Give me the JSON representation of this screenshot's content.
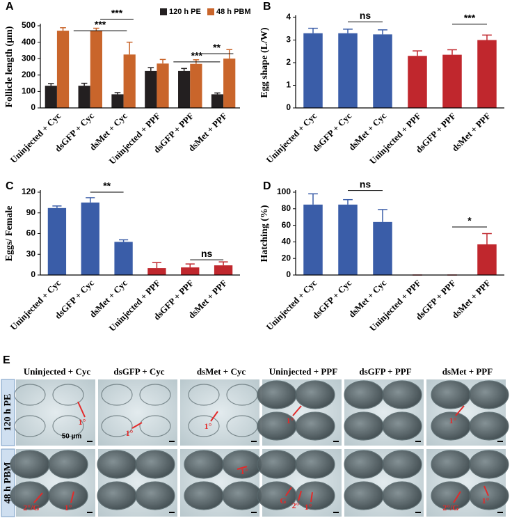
{
  "chart_data": [
    {
      "type": "bar",
      "panel_label": "A",
      "y_label": "Follicle length (µm)",
      "categories": [
        "Uninjected + Cyc",
        "dsGFP + Cyc",
        "dsMet + Cyc",
        "Uninjected + PPF",
        "dsGFP + PPF",
        "dsMet + PPF"
      ],
      "series": [
        {
          "name": "120 h PE",
          "color": "#231f20",
          "values": [
            135,
            135,
            83,
            225,
            225,
            83
          ],
          "errors": [
            13,
            15,
            10,
            20,
            15,
            8
          ]
        },
        {
          "name": "48 h PBM",
          "color": "#c9652b",
          "values": [
            470,
            470,
            325,
            270,
            268,
            300
          ],
          "errors": [
            18,
            15,
            75,
            25,
            25,
            55
          ]
        }
      ],
      "ylim": [
        0,
        500
      ],
      "yticks": [
        0,
        100,
        200,
        300,
        400,
        500
      ],
      "annotations": [
        "***",
        "***",
        "**",
        "***"
      ]
    },
    {
      "type": "bar",
      "panel_label": "B",
      "y_label": "Egg shape (L/W)",
      "categories": [
        "Uninjected + Cyc",
        "dsGFP + Cyc",
        "dsMet + Cyc",
        "Uninjected + PPF",
        "dsGFP + PPF",
        "dsMet + PPF"
      ],
      "series": [
        {
          "colors": [
            "#3a5da8",
            "#3a5da8",
            "#3a5da8",
            "#c0272d",
            "#c0272d",
            "#c0272d"
          ],
          "values": [
            3.3,
            3.3,
            3.25,
            2.3,
            2.35,
            3.0
          ],
          "errors": [
            0.22,
            0.18,
            0.2,
            0.22,
            0.22,
            0.22
          ]
        }
      ],
      "ylim": [
        0,
        4
      ],
      "yticks": [
        0,
        1,
        2,
        3,
        4
      ],
      "annotations": [
        "ns",
        "***"
      ]
    },
    {
      "type": "bar",
      "panel_label": "C",
      "y_label": "Eggs/ Female",
      "categories": [
        "Uninjected + Cyc",
        "dsGFP + Cyc",
        "dsMet + Cyc",
        "Uninjected + PPF",
        "dsGFP + PPF",
        "dsMet + PPF"
      ],
      "series": [
        {
          "colors": [
            "#3a5da8",
            "#3a5da8",
            "#3a5da8",
            "#c0272d",
            "#c0272d",
            "#c0272d"
          ],
          "values": [
            97,
            105,
            48,
            10,
            11,
            14
          ],
          "errors": [
            3,
            7,
            3,
            8,
            5,
            5
          ]
        }
      ],
      "ylim": [
        0,
        120
      ],
      "yticks": [
        0,
        30,
        60,
        90,
        120
      ],
      "annotations": [
        "**",
        "ns"
      ]
    },
    {
      "type": "bar",
      "panel_label": "D",
      "y_label": "Hatching (%)",
      "categories": [
        "Uninjected + Cyc",
        "dsGFP + Cyc",
        "dsMet + Cyc",
        "Uninjected + PPF",
        "dsGFP + PPF",
        "dsMet + PPF"
      ],
      "series": [
        {
          "colors": [
            "#3a5da8",
            "#3a5da8",
            "#3a5da8",
            "#c0272d",
            "#c0272d",
            "#c0272d"
          ],
          "values": [
            85,
            85,
            64,
            0,
            0,
            37
          ],
          "errors": [
            13,
            6,
            15,
            0,
            0,
            13
          ]
        }
      ],
      "ylim": [
        0,
        100
      ],
      "yticks": [
        0,
        20,
        40,
        60,
        80,
        100
      ],
      "annotations": [
        "ns",
        "*"
      ]
    }
  ],
  "panel_e": {
    "panel_label": "E",
    "columns": [
      "Uninjected + Cyc",
      "dsGFP + Cyc",
      "dsMet + Cyc",
      "Uninjected + PPF",
      "dsGFP + PPF",
      "dsMet + PPF"
    ],
    "rows": [
      "120 h PE",
      "48 h PBM"
    ],
    "scale_bar": "50 µm",
    "cells": [
      [
        [
          "1°"
        ],
        [
          "1°"
        ],
        [
          "1°"
        ],
        [
          "1°"
        ],
        [],
        [
          "1°"
        ]
      ],
      [
        [
          "2°/G",
          "1°"
        ],
        [],
        [
          "1°"
        ],
        [
          "G",
          "2°",
          "1°"
        ],
        [],
        [
          "2°/G",
          "1°"
        ]
      ]
    ]
  }
}
